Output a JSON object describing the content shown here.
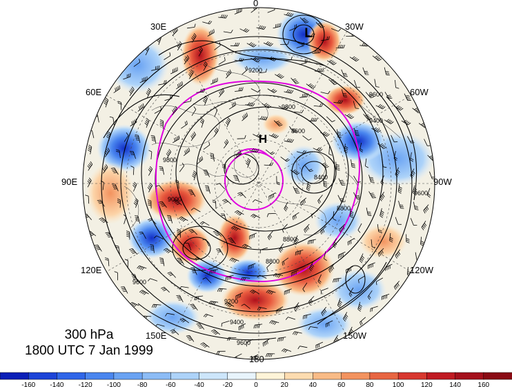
{
  "caption": {
    "level": "300 hPa",
    "time": "1800 UTC 7 Jan 1999"
  },
  "longitude_labels": {
    "top": "0",
    "upper_left": "30E",
    "upper_right": "30W",
    "mid_left_high": "60E",
    "mid_right_high": "60W",
    "left": "90E",
    "right": "90W",
    "mid_left_low": "120E",
    "mid_right_low": "120W",
    "lower_left": "150E",
    "lower_right": "150W",
    "bottom": "180"
  },
  "centers": {
    "low": "L",
    "high": "H"
  },
  "contour_labels": [
    "9200",
    "9400",
    "9600",
    "9800",
    "8800",
    "8600",
    "8400",
    "9000"
  ],
  "colorbar": {
    "ticks": [
      "-160",
      "-140",
      "-120",
      "-100",
      "-80",
      "-60",
      "-40",
      "-20",
      "0",
      "20",
      "40",
      "60",
      "80",
      "100",
      "120",
      "140",
      "160"
    ],
    "colors": [
      "#0a1fb8",
      "#1c44d8",
      "#2f66e8",
      "#4a86ef",
      "#6aa3f3",
      "#8cbcf6",
      "#add3f9",
      "#cde6fb",
      "#e8f4fc",
      "#fff4d8",
      "#fddcb0",
      "#f9bb86",
      "#f3935f",
      "#e86642",
      "#d8382f",
      "#c01a22",
      "#a5101c",
      "#8a0a14"
    ]
  },
  "colors": {
    "jet_contour": "#e000e0",
    "height_contour": "#000000",
    "positive_extreme": "#c01a22",
    "negative_extreme": "#1c44d8"
  }
}
